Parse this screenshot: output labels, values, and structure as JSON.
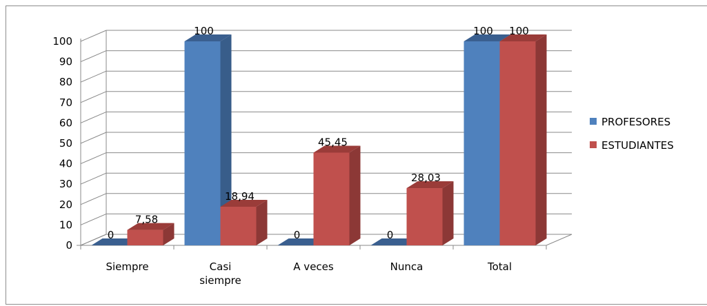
{
  "chart_data": {
    "type": "bar",
    "categories": [
      "Siempre",
      "Casi siempre",
      "A veces",
      "Nunca",
      "Total"
    ],
    "category_lines": [
      [
        "Siempre"
      ],
      [
        "Casi",
        "siempre"
      ],
      [
        "A veces"
      ],
      [
        "Nunca"
      ],
      [
        "Total"
      ]
    ],
    "series": [
      {
        "name": "PROFESORES",
        "values": [
          0,
          100,
          0,
          0,
          100
        ],
        "labels": [
          "0",
          "100",
          "0",
          "0",
          "100"
        ],
        "color": "#4F81BD"
      },
      {
        "name": "ESTUDIANTES",
        "values": [
          7.58,
          18.94,
          45.45,
          28.03,
          100
        ],
        "labels": [
          "7,58",
          "18,94",
          "45,45",
          "28,03",
          "100"
        ],
        "color": "#C0504D"
      }
    ],
    "y_ticks": [
      0,
      10,
      20,
      30,
      40,
      50,
      60,
      70,
      80,
      90,
      100
    ],
    "ylim": [
      0,
      100
    ],
    "grid": true,
    "style": "3d-clustered-column",
    "legend_position": "right"
  },
  "colors": {
    "profesores_side": "#385D8A",
    "profesores_top": "#3A5F8F",
    "estudiantes_side": "#8C3836",
    "estudiantes_top": "#9A3C39",
    "gridline": "#888888"
  }
}
